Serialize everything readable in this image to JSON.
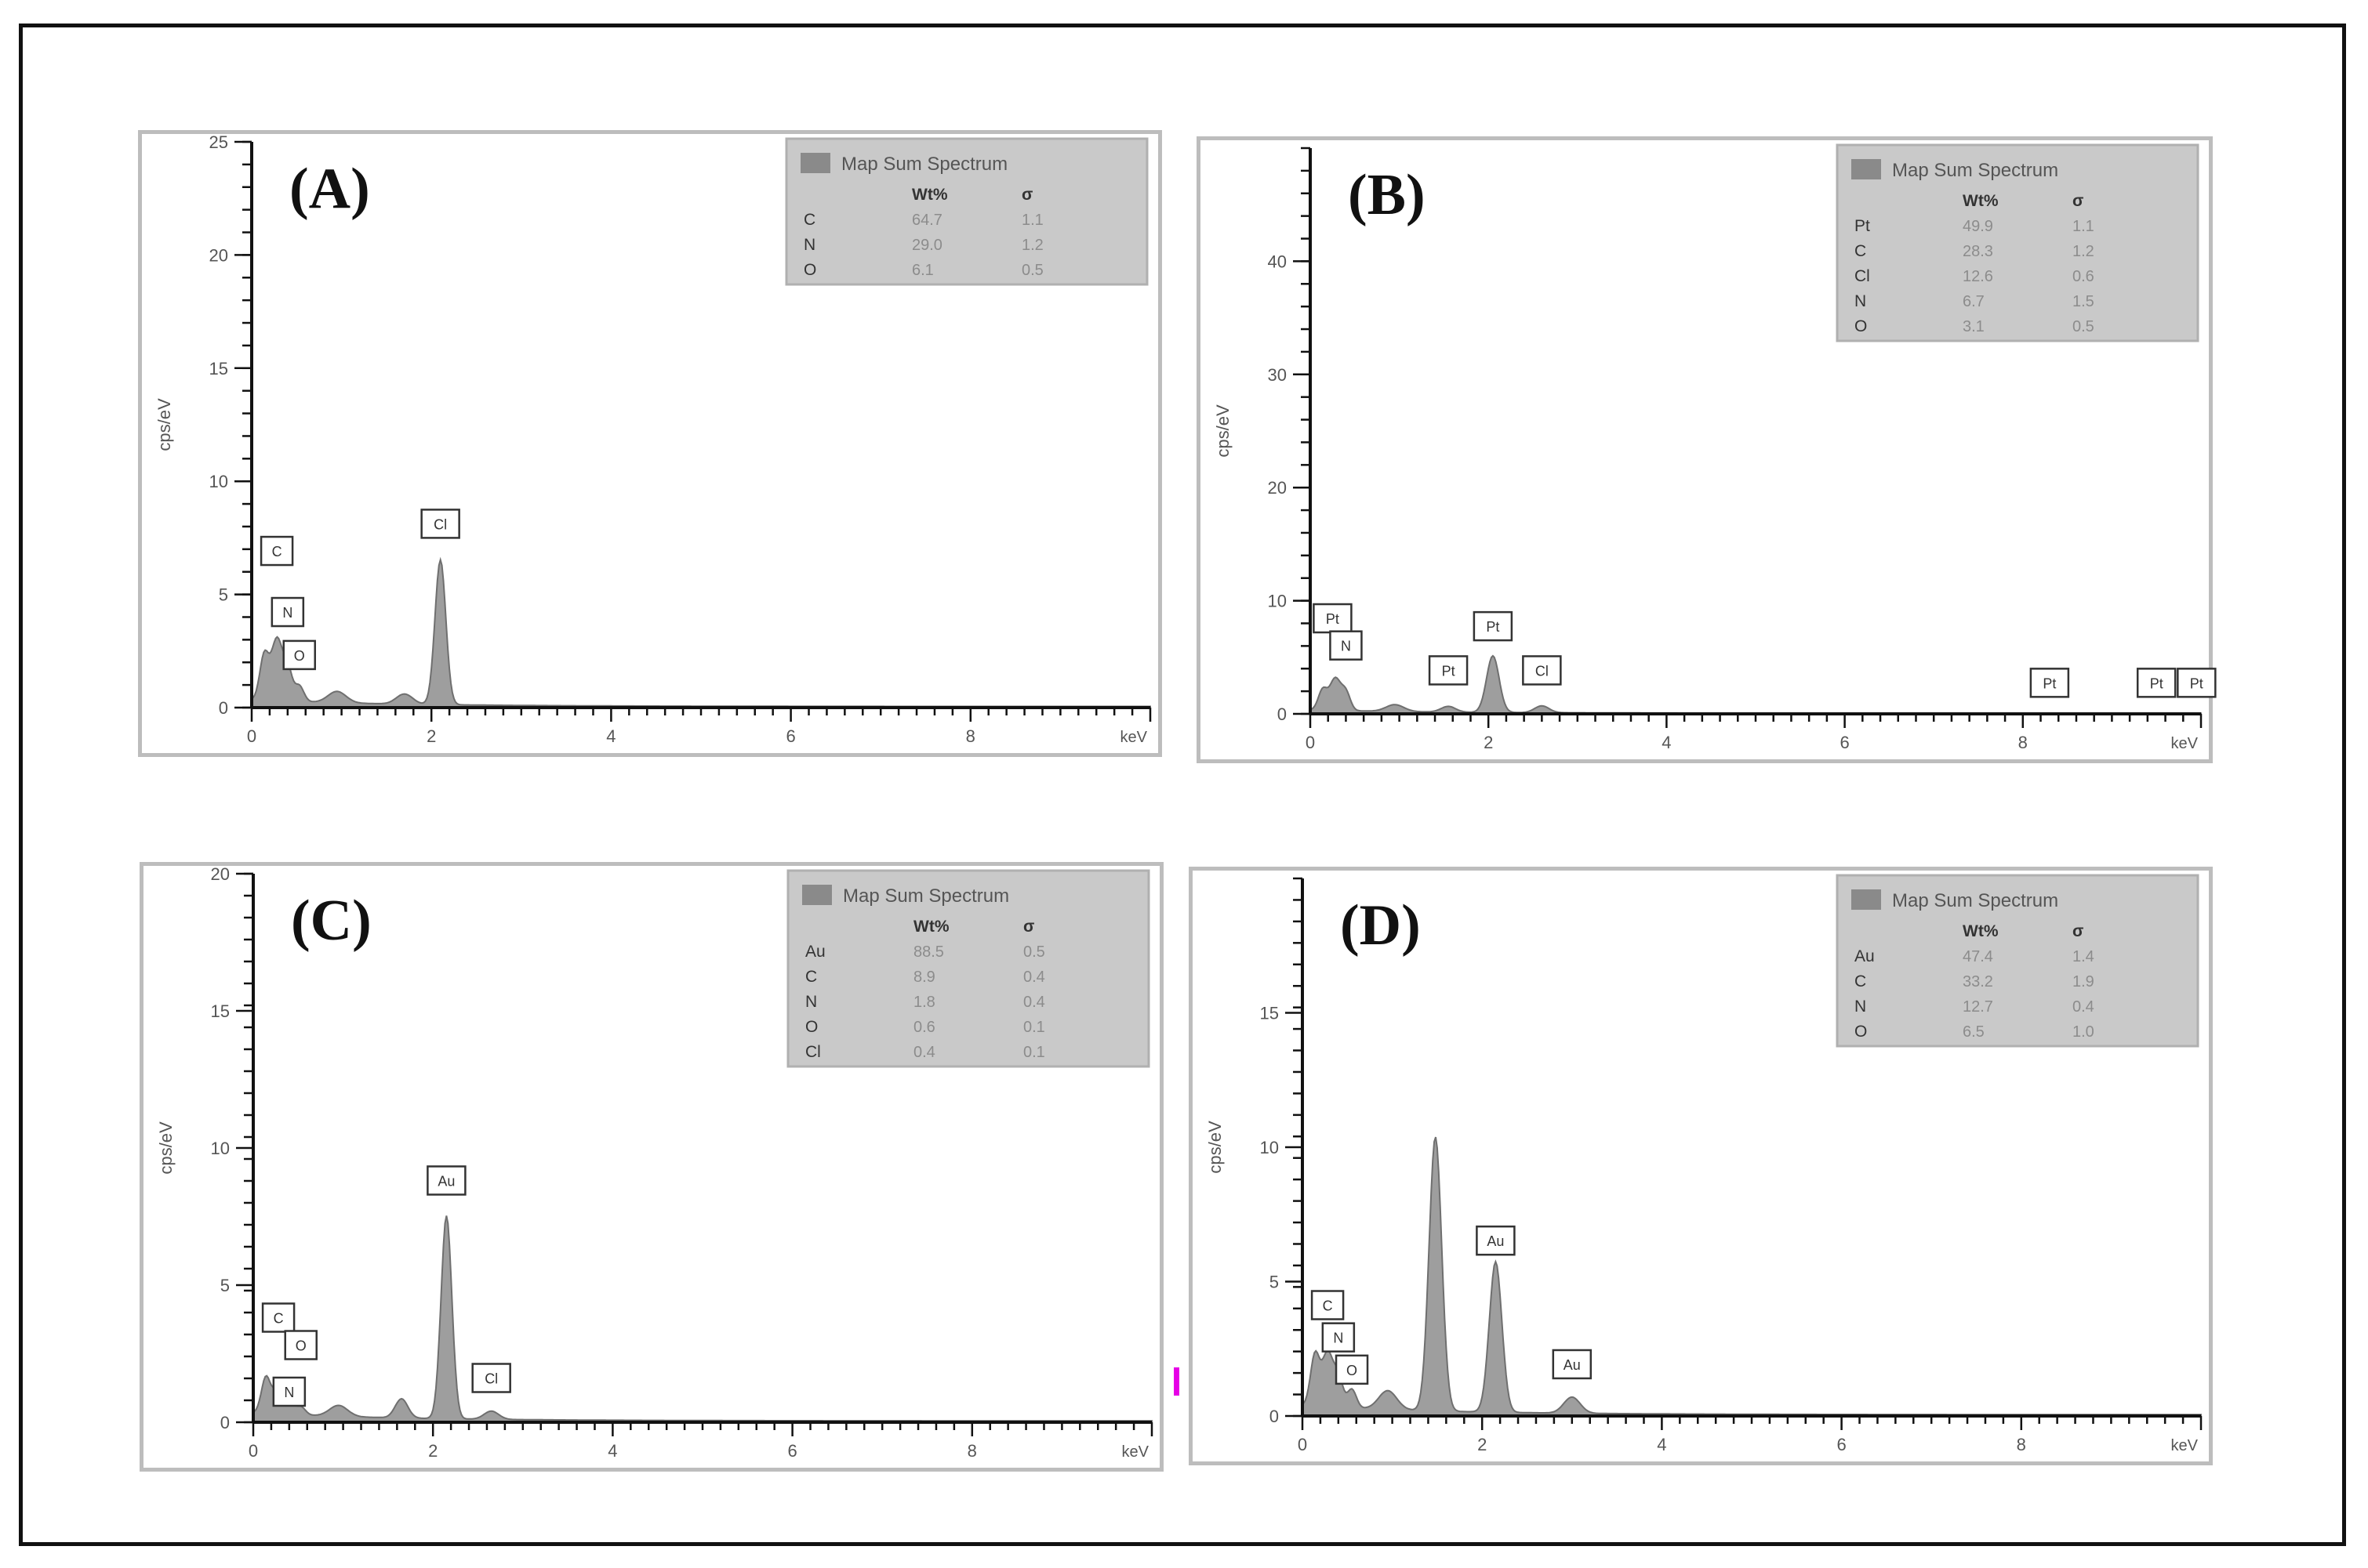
{
  "chart_data": [
    {
      "type": "area",
      "panel_label": "(A)",
      "xlabel": "keV",
      "ylabel": "cps/eV",
      "xlim": [
        0,
        10
      ],
      "ylim": [
        0,
        25
      ],
      "x_ticks": [
        "0",
        "2",
        "4",
        "6",
        "8"
      ],
      "y_ticks": [
        "0",
        "5",
        "10",
        "15",
        "20",
        "25"
      ],
      "legend": {
        "title": "Map Sum Spectrum",
        "columns": [
          "Wt%",
          "σ"
        ],
        "rows": [
          {
            "element": "C",
            "wt": "64.7",
            "sigma": "1.1"
          },
          {
            "element": "N",
            "wt": "29.0",
            "sigma": "1.2"
          },
          {
            "element": "O",
            "wt": "6.1",
            "sigma": "0.5"
          }
        ]
      },
      "peak_labels": [
        {
          "label": "C",
          "x": 0.28,
          "y": 6.3
        },
        {
          "label": "N",
          "x": 0.4,
          "y": 3.6
        },
        {
          "label": "O",
          "x": 0.53,
          "y": 1.7
        },
        {
          "label": "Cl",
          "x": 2.1,
          "y": 7.5
        }
      ],
      "peaks": [
        {
          "x": 0.14,
          "height": 2.0,
          "width": 0.05
        },
        {
          "x": 0.28,
          "height": 2.7,
          "width": 0.06
        },
        {
          "x": 0.4,
          "height": 1.4,
          "width": 0.05
        },
        {
          "x": 0.53,
          "height": 0.7,
          "width": 0.05
        },
        {
          "x": 0.95,
          "height": 0.5,
          "width": 0.1
        },
        {
          "x": 1.7,
          "height": 0.45,
          "width": 0.09
        },
        {
          "x": 2.1,
          "height": 6.4,
          "width": 0.06
        }
      ],
      "baseline": 0.3
    },
    {
      "type": "area",
      "panel_label": "(B)",
      "xlabel": "keV",
      "ylabel": "cps/eV",
      "xlim": [
        0,
        10
      ],
      "ylim": [
        0,
        50
      ],
      "x_ticks": [
        "0",
        "2",
        "4",
        "6",
        "8"
      ],
      "y_ticks": [
        "0",
        "10",
        "20",
        "30",
        "40"
      ],
      "legend": {
        "title": "Map Sum Spectrum",
        "columns": [
          "Wt%",
          "σ"
        ],
        "rows": [
          {
            "element": "Pt",
            "wt": "49.9",
            "sigma": "1.1"
          },
          {
            "element": "C",
            "wt": "28.3",
            "sigma": "1.2"
          },
          {
            "element": "Cl",
            "wt": "12.6",
            "sigma": "0.6"
          },
          {
            "element": "N",
            "wt": "6.7",
            "sigma": "1.5"
          },
          {
            "element": "O",
            "wt": "3.1",
            "sigma": "0.5"
          }
        ]
      },
      "peak_labels": [
        {
          "label": "Pt",
          "x": 0.25,
          "y": 7.2
        },
        {
          "label": "N",
          "x": 0.4,
          "y": 4.8
        },
        {
          "label": "Pt",
          "x": 1.55,
          "y": 2.6
        },
        {
          "label": "Pt",
          "x": 2.05,
          "y": 6.5
        },
        {
          "label": "Cl",
          "x": 2.6,
          "y": 2.6
        },
        {
          "label": "Pt",
          "x": 8.3,
          "y": 1.5
        },
        {
          "label": "Pt",
          "x": 9.5,
          "y": 1.5
        },
        {
          "label": "Pt",
          "x": 9.95,
          "y": 1.5
        }
      ],
      "peaks": [
        {
          "x": 0.14,
          "height": 1.8,
          "width": 0.05
        },
        {
          "x": 0.28,
          "height": 2.8,
          "width": 0.06
        },
        {
          "x": 0.4,
          "height": 1.6,
          "width": 0.05
        },
        {
          "x": 0.95,
          "height": 0.6,
          "width": 0.1
        },
        {
          "x": 1.55,
          "height": 0.5,
          "width": 0.08
        },
        {
          "x": 2.05,
          "height": 5.0,
          "width": 0.07
        },
        {
          "x": 2.6,
          "height": 0.6,
          "width": 0.08
        }
      ],
      "baseline": 0.3
    },
    {
      "type": "area",
      "panel_label": "(C)",
      "xlabel": "keV",
      "ylabel": "cps/eV",
      "xlim": [
        0,
        10
      ],
      "ylim": [
        0,
        20
      ],
      "x_ticks": [
        "0",
        "2",
        "4",
        "6",
        "8"
      ],
      "y_ticks": [
        "0",
        "5",
        "10",
        "15",
        "20"
      ],
      "legend": {
        "title": "Map Sum Spectrum",
        "columns": [
          "Wt%",
          "σ"
        ],
        "rows": [
          {
            "element": "Au",
            "wt": "88.5",
            "sigma": "0.5"
          },
          {
            "element": "C",
            "wt": "8.9",
            "sigma": "0.4"
          },
          {
            "element": "N",
            "wt": "1.8",
            "sigma": "0.4"
          },
          {
            "element": "O",
            "wt": "0.6",
            "sigma": "0.1"
          },
          {
            "element": "Cl",
            "wt": "0.4",
            "sigma": "0.1"
          }
        ]
      },
      "peak_labels": [
        {
          "label": "C",
          "x": 0.28,
          "y": 3.3
        },
        {
          "label": "O",
          "x": 0.53,
          "y": 2.3
        },
        {
          "label": "N",
          "x": 0.4,
          "y": 0.6
        },
        {
          "label": "Au",
          "x": 2.15,
          "y": 8.3
        },
        {
          "label": "Cl",
          "x": 2.65,
          "y": 1.1
        }
      ],
      "peaks": [
        {
          "x": 0.14,
          "height": 1.3,
          "width": 0.05
        },
        {
          "x": 0.28,
          "height": 1.0,
          "width": 0.06
        },
        {
          "x": 0.4,
          "height": 0.5,
          "width": 0.05
        },
        {
          "x": 0.53,
          "height": 0.3,
          "width": 0.05
        },
        {
          "x": 0.95,
          "height": 0.4,
          "width": 0.1
        },
        {
          "x": 1.65,
          "height": 0.7,
          "width": 0.07
        },
        {
          "x": 2.15,
          "height": 7.4,
          "width": 0.06
        },
        {
          "x": 2.65,
          "height": 0.3,
          "width": 0.08
        }
      ],
      "baseline": 0.3
    },
    {
      "type": "area",
      "panel_label": "(D)",
      "xlabel": "keV",
      "ylabel": "cps/eV",
      "xlim": [
        0,
        10
      ],
      "ylim": [
        0,
        20
      ],
      "x_ticks": [
        "0",
        "2",
        "4",
        "6",
        "8"
      ],
      "y_ticks": [
        "0",
        "5",
        "10",
        "15"
      ],
      "legend": {
        "title": "Map Sum Spectrum",
        "columns": [
          "Wt%",
          "σ"
        ],
        "rows": [
          {
            "element": "Au",
            "wt": "47.4",
            "sigma": "1.4"
          },
          {
            "element": "C",
            "wt": "33.2",
            "sigma": "1.9"
          },
          {
            "element": "N",
            "wt": "12.7",
            "sigma": "0.4"
          },
          {
            "element": "O",
            "wt": "6.5",
            "sigma": "1.0"
          }
        ]
      },
      "peak_labels": [
        {
          "label": "C",
          "x": 0.28,
          "y": 3.6
        },
        {
          "label": "N",
          "x": 0.4,
          "y": 2.4
        },
        {
          "label": "O",
          "x": 0.55,
          "y": 1.2
        },
        {
          "label": "Au",
          "x": 2.15,
          "y": 6.0
        },
        {
          "label": "Au",
          "x": 3.0,
          "y": 1.4
        }
      ],
      "peaks": [
        {
          "x": 0.14,
          "height": 1.9,
          "width": 0.05
        },
        {
          "x": 0.28,
          "height": 2.0,
          "width": 0.06
        },
        {
          "x": 0.4,
          "height": 1.1,
          "width": 0.05
        },
        {
          "x": 0.55,
          "height": 0.7,
          "width": 0.05
        },
        {
          "x": 0.95,
          "height": 0.7,
          "width": 0.1
        },
        {
          "x": 1.48,
          "height": 10.2,
          "width": 0.07
        },
        {
          "x": 2.15,
          "height": 5.6,
          "width": 0.07
        },
        {
          "x": 3.0,
          "height": 0.6,
          "width": 0.09
        }
      ],
      "baseline": 0.35
    }
  ],
  "colors": {
    "spectrum_fill": "#9e9e9e",
    "legend_background": "#c9c9c9",
    "frame": "#111111",
    "mark": "#e600e6"
  }
}
